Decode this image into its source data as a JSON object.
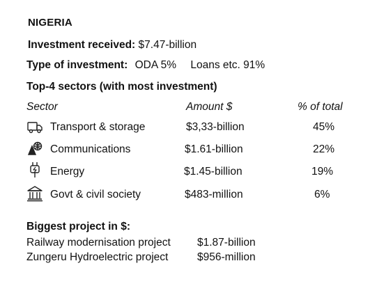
{
  "country": "NIGERIA",
  "investment_received": {
    "label": "Investment received:",
    "value": "$7.47-billion"
  },
  "type_of_investment": {
    "label": "Type of investment:",
    "oda": "ODA 5%",
    "loans": "Loans etc. 91%"
  },
  "sectors": {
    "heading": "Top-4 sectors (with most investment)",
    "columns": {
      "sector": "Sector",
      "amount": "Amount $",
      "percent": "% of total"
    },
    "rows": [
      {
        "icon": "truck-icon",
        "name": "Transport & storage",
        "amount": "$3,33-billion",
        "percent": "45%"
      },
      {
        "icon": "communications-icon",
        "name": "Communications",
        "amount": "$1.61-billion",
        "percent": "22%"
      },
      {
        "icon": "plug-icon",
        "name": "Energy",
        "amount": "$1.45-billion",
        "percent": "19%"
      },
      {
        "icon": "government-building-icon",
        "name": "Govt & civil society",
        "amount": "$483-million",
        "percent": "6%"
      }
    ]
  },
  "biggest_project": {
    "heading": "Biggest project in $:",
    "projects": [
      {
        "name": "Railway modernisation project",
        "amount": "$1.87-billion"
      },
      {
        "name": "Zungeru Hydroelectric project",
        "amount": "$956-million"
      }
    ]
  }
}
